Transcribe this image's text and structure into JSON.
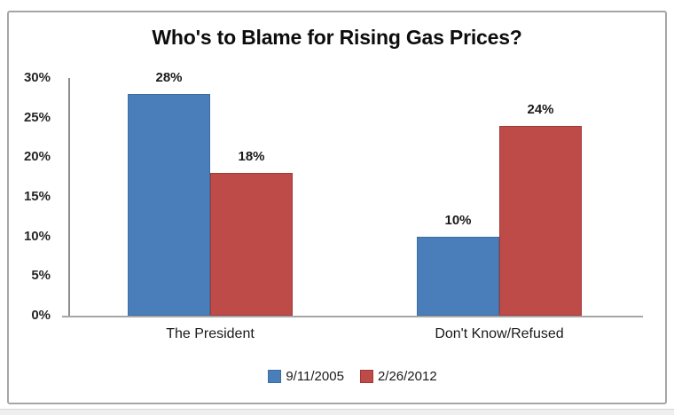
{
  "chart_data": {
    "type": "bar",
    "title": "Who's to Blame for Rising Gas Prices?",
    "categories": [
      "The President",
      "Don't Know/Refused"
    ],
    "series": [
      {
        "name": "9/11/2005",
        "color": "#4A7EBB",
        "border_color": "#3C6E9F",
        "values": [
          28,
          10
        ],
        "labels": [
          "28%",
          "10%"
        ]
      },
      {
        "name": "2/26/2012",
        "color": "#BE4B48",
        "border_color": "#9E3B39",
        "values": [
          18,
          24
        ],
        "labels": [
          "18%",
          "24%"
        ]
      }
    ],
    "y_ticks": [
      "30%",
      "25%",
      "20%",
      "15%",
      "10%",
      "5%",
      "0%"
    ],
    "ylim": [
      0,
      30
    ],
    "xlabel": "",
    "ylabel": "",
    "grid": false,
    "legend_position": "bottom",
    "data_labels_shown": true,
    "axis_color": "#8c8c8c",
    "frame_border_color": "#a6a6a6"
  }
}
